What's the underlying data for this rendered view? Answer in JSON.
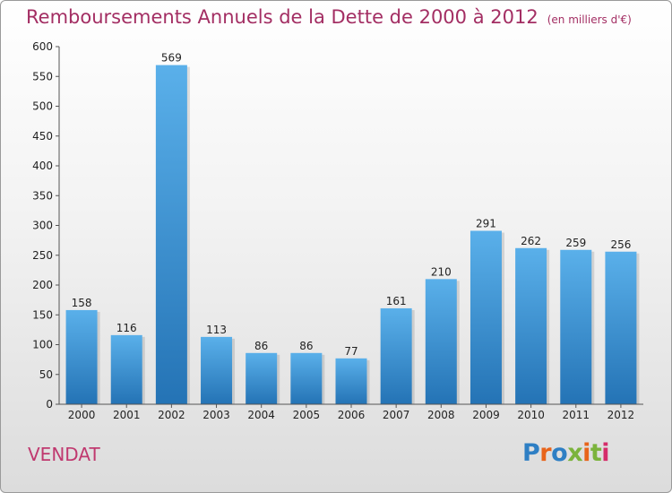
{
  "header": {
    "title": "Remboursements Annuels de la Dette de 2000 à 2012",
    "unit": "(en milliers d'€)"
  },
  "footer": {
    "commune": "VENDAT",
    "logo_text": "Proxiti"
  },
  "colors": {
    "title": "#a32e63",
    "commune": "#c0396f",
    "bar_top": "#5ab0ea",
    "bar_bottom": "#2473b5",
    "logo": [
      "#2e7fc4",
      "#e8641b",
      "#2e7fc4",
      "#7bb33c",
      "#e8641b",
      "#7bb33c",
      "#d52d6a"
    ]
  },
  "chart_data": {
    "type": "bar",
    "categories": [
      "2000",
      "2001",
      "2002",
      "2003",
      "2004",
      "2005",
      "2006",
      "2007",
      "2008",
      "2009",
      "2010",
      "2011",
      "2012"
    ],
    "values": [
      158,
      116,
      569,
      113,
      86,
      86,
      77,
      161,
      210,
      291,
      262,
      259,
      256
    ],
    "ylim": [
      0,
      600
    ],
    "yticks": [
      0,
      50,
      100,
      150,
      200,
      250,
      300,
      350,
      400,
      450,
      500,
      550,
      600
    ],
    "grid": false,
    "data_labels": true
  }
}
